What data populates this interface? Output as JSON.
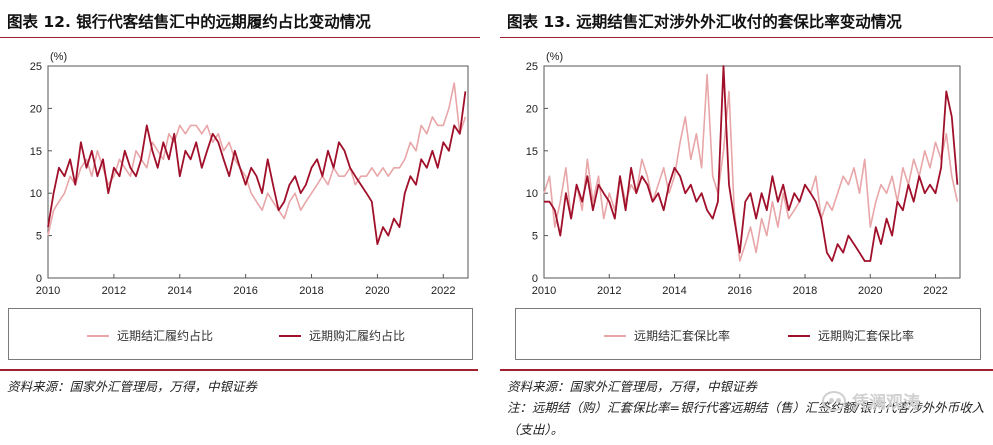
{
  "left_panel": {
    "title": "图表 12. 银行代客结售汇中的远期履约占比变动情况",
    "source": "资料来源：国家外汇管理局，万得，中银证券"
  },
  "right_panel": {
    "title": "图表 13. 远期结售汇对涉外外汇收付的套保比率变动情况",
    "source": "资料来源：国家外汇管理局，万得，中银证券",
    "note": "注：远期结（购）汇套保比率=银行代客远期结（售）汇签约额/银行代客涉外外币收入（支出）。",
    "watermark": "凭澜观涛"
  },
  "colors": {
    "pink": "#e8a6a8",
    "dark_red": "#a0102a",
    "accent_rule": "#a02030"
  },
  "chart_data": [
    {
      "type": "line",
      "title": "银行代客结售汇中的远期履约占比变动情况",
      "ylabel": "(%)",
      "ylim": [
        0,
        25
      ],
      "yticks": [
        0,
        5,
        10,
        15,
        20,
        25
      ],
      "xlim": [
        2010.0,
        2022.75
      ],
      "xticks": [
        2010,
        2012,
        2014,
        2016,
        2018,
        2020,
        2022
      ],
      "grid": false,
      "legend": "bottom",
      "series": [
        {
          "name": "远期结汇履约占比",
          "color": "#e8a6a8",
          "x": [
            2010.0,
            2010.17,
            2010.33,
            2010.5,
            2010.67,
            2010.83,
            2011.0,
            2011.17,
            2011.33,
            2011.5,
            2011.67,
            2011.83,
            2012.0,
            2012.17,
            2012.33,
            2012.5,
            2012.67,
            2012.83,
            2013.0,
            2013.17,
            2013.33,
            2013.5,
            2013.67,
            2013.83,
            2014.0,
            2014.17,
            2014.33,
            2014.5,
            2014.67,
            2014.83,
            2015.0,
            2015.17,
            2015.33,
            2015.5,
            2015.67,
            2015.83,
            2016.0,
            2016.17,
            2016.33,
            2016.5,
            2016.67,
            2016.83,
            2017.0,
            2017.17,
            2017.33,
            2017.5,
            2017.67,
            2017.83,
            2018.0,
            2018.17,
            2018.33,
            2018.5,
            2018.67,
            2018.83,
            2019.0,
            2019.17,
            2019.33,
            2019.5,
            2019.67,
            2019.83,
            2020.0,
            2020.17,
            2020.33,
            2020.5,
            2020.67,
            2020.83,
            2021.0,
            2021.17,
            2021.33,
            2021.5,
            2021.67,
            2021.83,
            2022.0,
            2022.17,
            2022.33,
            2022.5,
            2022.67
          ],
          "values": [
            5,
            8,
            9,
            10,
            12,
            11,
            13,
            14,
            12,
            15,
            13,
            11,
            12,
            14,
            13,
            12,
            15,
            14,
            13,
            16,
            15,
            14,
            17,
            16,
            18,
            17,
            18,
            18,
            17,
            18,
            16,
            17,
            15,
            16,
            14,
            13,
            12,
            10,
            9,
            8,
            10,
            9,
            8,
            7,
            9,
            10,
            8,
            9,
            10,
            11,
            12,
            11,
            13,
            12,
            12,
            13,
            11,
            12,
            12,
            13,
            12,
            13,
            12,
            13,
            13,
            14,
            16,
            15,
            18,
            17,
            19,
            18,
            18,
            20,
            23,
            17,
            19
          ]
        },
        {
          "name": "远期购汇履约占比",
          "color": "#a0102a",
          "x": [
            2010.0,
            2010.17,
            2010.33,
            2010.5,
            2010.67,
            2010.83,
            2011.0,
            2011.17,
            2011.33,
            2011.5,
            2011.67,
            2011.83,
            2012.0,
            2012.17,
            2012.33,
            2012.5,
            2012.67,
            2012.83,
            2013.0,
            2013.17,
            2013.33,
            2013.5,
            2013.67,
            2013.83,
            2014.0,
            2014.17,
            2014.33,
            2014.5,
            2014.67,
            2014.83,
            2015.0,
            2015.17,
            2015.33,
            2015.5,
            2015.67,
            2015.83,
            2016.0,
            2016.17,
            2016.33,
            2016.5,
            2016.67,
            2016.83,
            2017.0,
            2017.17,
            2017.33,
            2017.5,
            2017.67,
            2017.83,
            2018.0,
            2018.17,
            2018.33,
            2018.5,
            2018.67,
            2018.83,
            2019.0,
            2019.17,
            2019.33,
            2019.5,
            2019.67,
            2019.83,
            2020.0,
            2020.17,
            2020.33,
            2020.5,
            2020.67,
            2020.83,
            2021.0,
            2021.17,
            2021.33,
            2021.5,
            2021.67,
            2021.83,
            2022.0,
            2022.17,
            2022.33,
            2022.5,
            2022.67
          ],
          "values": [
            6,
            10,
            13,
            12,
            14,
            11,
            16,
            13,
            15,
            12,
            14,
            10,
            13,
            12,
            15,
            13,
            12,
            14,
            18,
            15,
            13,
            16,
            14,
            17,
            12,
            15,
            14,
            16,
            13,
            15,
            17,
            16,
            14,
            12,
            15,
            13,
            11,
            13,
            12,
            10,
            14,
            11,
            8,
            9,
            11,
            12,
            10,
            11,
            13,
            14,
            12,
            15,
            13,
            16,
            15,
            13,
            12,
            11,
            10,
            9,
            4,
            6,
            5,
            7,
            6,
            10,
            12,
            11,
            14,
            13,
            15,
            13,
            16,
            15,
            18,
            17,
            22
          ]
        }
      ]
    },
    {
      "type": "line",
      "title": "远期结售汇对涉外外汇收付的套保比率变动情况",
      "ylabel": "(%)",
      "ylim": [
        0,
        25
      ],
      "yticks": [
        0,
        5,
        10,
        15,
        20,
        25
      ],
      "xlim": [
        2010.0,
        2022.75
      ],
      "xticks": [
        2010,
        2012,
        2014,
        2016,
        2018,
        2020,
        2022
      ],
      "grid": false,
      "legend": "bottom",
      "series": [
        {
          "name": "远期结汇套保比率",
          "color": "#e8a6a8",
          "x": [
            2010.0,
            2010.17,
            2010.33,
            2010.5,
            2010.67,
            2010.83,
            2011.0,
            2011.17,
            2011.33,
            2011.5,
            2011.67,
            2011.83,
            2012.0,
            2012.17,
            2012.33,
            2012.5,
            2012.67,
            2012.83,
            2013.0,
            2013.17,
            2013.33,
            2013.5,
            2013.67,
            2013.83,
            2014.0,
            2014.17,
            2014.33,
            2014.5,
            2014.67,
            2014.83,
            2015.0,
            2015.17,
            2015.33,
            2015.5,
            2015.67,
            2015.83,
            2016.0,
            2016.17,
            2016.33,
            2016.5,
            2016.67,
            2016.83,
            2017.0,
            2017.17,
            2017.33,
            2017.5,
            2017.67,
            2017.83,
            2018.0,
            2018.17,
            2018.33,
            2018.5,
            2018.67,
            2018.83,
            2019.0,
            2019.17,
            2019.33,
            2019.5,
            2019.67,
            2019.83,
            2020.0,
            2020.17,
            2020.33,
            2020.5,
            2020.67,
            2020.83,
            2021.0,
            2021.17,
            2021.33,
            2021.5,
            2021.67,
            2021.83,
            2022.0,
            2022.17,
            2022.33,
            2022.5,
            2022.67
          ],
          "values": [
            10,
            12,
            6,
            9,
            13,
            7,
            11,
            8,
            14,
            9,
            12,
            7,
            10,
            8,
            12,
            9,
            11,
            10,
            14,
            12,
            9,
            11,
            13,
            10,
            12,
            16,
            19,
            14,
            17,
            13,
            24,
            12,
            10,
            15,
            22,
            8,
            2,
            4,
            6,
            3,
            7,
            5,
            9,
            6,
            10,
            7,
            8,
            9,
            11,
            10,
            12,
            7,
            9,
            8,
            10,
            12,
            11,
            13,
            10,
            14,
            6,
            9,
            11,
            10,
            12,
            9,
            13,
            11,
            14,
            12,
            15,
            13,
            16,
            14,
            17,
            12,
            9
          ]
        },
        {
          "name": "远期购汇套保比率",
          "color": "#a0102a",
          "x": [
            2010.0,
            2010.17,
            2010.33,
            2010.5,
            2010.67,
            2010.83,
            2011.0,
            2011.17,
            2011.33,
            2011.5,
            2011.67,
            2011.83,
            2012.0,
            2012.17,
            2012.33,
            2012.5,
            2012.67,
            2012.83,
            2013.0,
            2013.17,
            2013.33,
            2013.5,
            2013.67,
            2013.83,
            2014.0,
            2014.17,
            2014.33,
            2014.5,
            2014.67,
            2014.83,
            2015.0,
            2015.17,
            2015.33,
            2015.5,
            2015.67,
            2015.83,
            2016.0,
            2016.17,
            2016.33,
            2016.5,
            2016.67,
            2016.83,
            2017.0,
            2017.17,
            2017.33,
            2017.5,
            2017.67,
            2017.83,
            2018.0,
            2018.17,
            2018.33,
            2018.5,
            2018.67,
            2018.83,
            2019.0,
            2019.17,
            2019.33,
            2019.5,
            2019.67,
            2019.83,
            2020.0,
            2020.17,
            2020.33,
            2020.5,
            2020.67,
            2020.83,
            2021.0,
            2021.17,
            2021.33,
            2021.5,
            2021.67,
            2021.83,
            2022.0,
            2022.17,
            2022.33,
            2022.5,
            2022.67
          ],
          "values": [
            9,
            9,
            8,
            5,
            10,
            7,
            11,
            9,
            12,
            8,
            11,
            10,
            9,
            7,
            12,
            8,
            13,
            10,
            12,
            11,
            9,
            10,
            8,
            11,
            13,
            12,
            10,
            11,
            9,
            10,
            8,
            7,
            9,
            25,
            11,
            7,
            3,
            9,
            10,
            7,
            10,
            8,
            12,
            9,
            11,
            8,
            10,
            9,
            11,
            10,
            9,
            7,
            3,
            2,
            4,
            3,
            5,
            4,
            3,
            2,
            2,
            6,
            4,
            7,
            5,
            9,
            8,
            11,
            9,
            12,
            10,
            11,
            10,
            13,
            22,
            19,
            11
          ]
        }
      ]
    }
  ]
}
